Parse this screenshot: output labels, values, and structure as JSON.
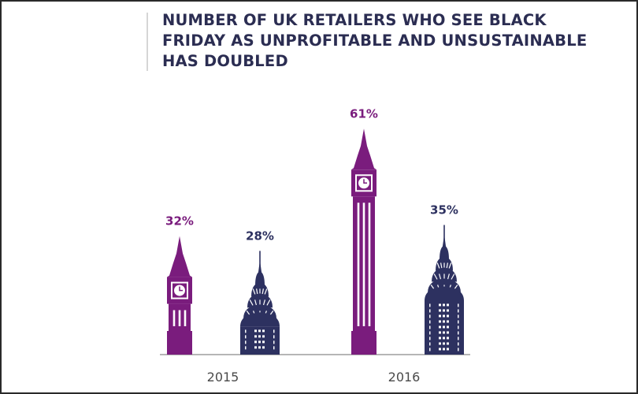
{
  "chart_data": {
    "type": "bar",
    "title": "NUMBER OF UK RETAILERS WHO SEE BLACK FRIDAY AS UNPROFITABLE AND UNSUSTAINABLE HAS DOUBLED",
    "categories": [
      "2015",
      "2016"
    ],
    "series": [
      {
        "values": [
          32,
          61
        ],
        "labels": [
          "32%",
          "61%"
        ],
        "color": "#7a1c7d",
        "icon": "big-ben-icon"
      },
      {
        "values": [
          28,
          35
        ],
        "labels": [
          "28%",
          "35%"
        ],
        "color": "#2d3160",
        "icon": "chrysler-building-icon"
      }
    ],
    "ylim": [
      0,
      100
    ],
    "grid": false
  }
}
